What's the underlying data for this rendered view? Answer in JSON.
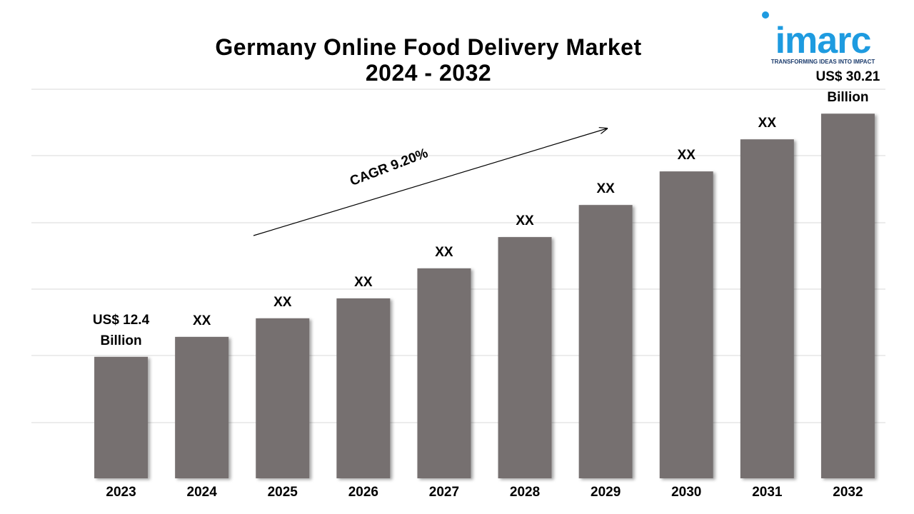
{
  "chart_data": {
    "type": "bar",
    "title": "Germany Online Food Delivery Market\n2024 - 2032",
    "annotation": "CAGR 9.20%",
    "logo": {
      "name": "imarc",
      "tagline": "TRANSFORMING IDEAS INTO IMPACT"
    },
    "categories": [
      "2023",
      "2024",
      "2025",
      "2026",
      "2027",
      "2028",
      "2029",
      "2030",
      "2031",
      "2032"
    ],
    "values": [
      12.4,
      13.86,
      15.22,
      16.68,
      18.88,
      21.17,
      23.52,
      25.98,
      28.33,
      30.21
    ],
    "value_labels": [
      "US$ 12.4\nBillion",
      "XX",
      "XX",
      "XX",
      "XX",
      "XX",
      "XX",
      "XX",
      "XX",
      "US$ 30.21\nBillion"
    ],
    "color": "#767070",
    "ylim": [
      3.5,
      32
    ],
    "grid": true
  }
}
